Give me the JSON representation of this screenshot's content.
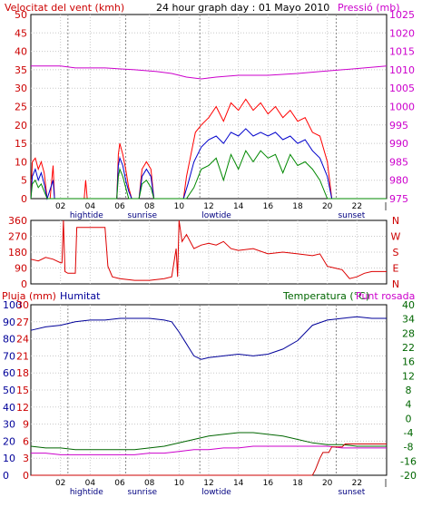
{
  "chart_data": [
    {
      "id": "top",
      "type": "line",
      "title": "24 hour graph day : 01 Mayo 2010",
      "left_axis_label": "Velocitat del vent (kmh)",
      "right_axis_label": "Pressió (mb)",
      "left_range": [
        0,
        50
      ],
      "left_ticks": [
        "0",
        "5",
        "10",
        "15",
        "20",
        "25",
        "30",
        "35",
        "40",
        "45",
        "50"
      ],
      "right_range": [
        975,
        1025
      ],
      "right_ticks": [
        "975",
        "980",
        "985",
        "990",
        "995",
        "1000",
        "1005",
        "1010",
        "1015",
        "1020",
        "1025"
      ],
      "x_ticks": [
        "02",
        "04",
        "06",
        "08",
        "10",
        "12",
        "14",
        "16",
        "18",
        "20",
        "22"
      ],
      "markers": [
        {
          "hour": 2.5,
          "label": "hightide"
        },
        {
          "hour": 6.4,
          "label": "sunrise"
        },
        {
          "hour": 11.4,
          "label": "lowtide"
        },
        {
          "hour": 20.6,
          "label": "sunset"
        }
      ],
      "pressure": {
        "color": "#cc00cc",
        "points": [
          [
            0,
            1011
          ],
          [
            2,
            1011
          ],
          [
            3,
            1010.5
          ],
          [
            5,
            1010.5
          ],
          [
            7,
            1010
          ],
          [
            8.5,
            1009.5
          ],
          [
            9.5,
            1009
          ],
          [
            10.5,
            1008
          ],
          [
            11.5,
            1007.5
          ],
          [
            12.5,
            1008
          ],
          [
            14,
            1008.5
          ],
          [
            16,
            1008.5
          ],
          [
            18,
            1009
          ],
          [
            19.5,
            1009.5
          ],
          [
            21,
            1010
          ],
          [
            22.5,
            1010.5
          ],
          [
            24,
            1011
          ]
        ]
      },
      "wind_max": {
        "color": "#ff0000",
        "points": [
          [
            0,
            0
          ],
          [
            0.1,
            10
          ],
          [
            0.3,
            11
          ],
          [
            0.5,
            8
          ],
          [
            0.7,
            10
          ],
          [
            0.9,
            7
          ],
          [
            1.1,
            0
          ],
          [
            1.3,
            0
          ],
          [
            1.5,
            9
          ],
          [
            1.6,
            0
          ],
          [
            3.6,
            0
          ],
          [
            3.7,
            5
          ],
          [
            3.8,
            0
          ],
          [
            5.8,
            0
          ],
          [
            5.9,
            12
          ],
          [
            6,
            15
          ],
          [
            6.2,
            12
          ],
          [
            6.4,
            8
          ],
          [
            6.6,
            3
          ],
          [
            6.8,
            0
          ],
          [
            7.3,
            0
          ],
          [
            7.5,
            8
          ],
          [
            7.8,
            10
          ],
          [
            8.1,
            8
          ],
          [
            8.3,
            0
          ],
          [
            10.3,
            0
          ],
          [
            10.5,
            6
          ],
          [
            10.8,
            12
          ],
          [
            11.1,
            18
          ],
          [
            11.5,
            20
          ],
          [
            12,
            22
          ],
          [
            12.5,
            25
          ],
          [
            13,
            21
          ],
          [
            13.5,
            26
          ],
          [
            14,
            24
          ],
          [
            14.5,
            27
          ],
          [
            15,
            24
          ],
          [
            15.5,
            26
          ],
          [
            16,
            23
          ],
          [
            16.5,
            25
          ],
          [
            17,
            22
          ],
          [
            17.5,
            24
          ],
          [
            18,
            21
          ],
          [
            18.5,
            22
          ],
          [
            19,
            18
          ],
          [
            19.5,
            17
          ],
          [
            20,
            10
          ],
          [
            20.3,
            0
          ],
          [
            24,
            0
          ]
        ]
      },
      "wind_avg": {
        "color": "#0000cc",
        "points": [
          [
            0,
            0
          ],
          [
            0.1,
            6
          ],
          [
            0.3,
            8
          ],
          [
            0.5,
            5
          ],
          [
            0.7,
            7
          ],
          [
            0.9,
            4
          ],
          [
            1.1,
            0
          ],
          [
            1.5,
            5
          ],
          [
            1.6,
            0
          ],
          [
            5.8,
            0
          ],
          [
            5.9,
            9
          ],
          [
            6,
            11
          ],
          [
            6.2,
            9
          ],
          [
            6.4,
            5
          ],
          [
            6.6,
            2
          ],
          [
            6.8,
            0
          ],
          [
            7.3,
            0
          ],
          [
            7.5,
            6
          ],
          [
            7.8,
            8
          ],
          [
            8.1,
            6
          ],
          [
            8.3,
            0
          ],
          [
            10.3,
            0
          ],
          [
            10.6,
            4
          ],
          [
            11,
            10
          ],
          [
            11.5,
            14
          ],
          [
            12,
            16
          ],
          [
            12.5,
            17
          ],
          [
            13,
            15
          ],
          [
            13.5,
            18
          ],
          [
            14,
            17
          ],
          [
            14.5,
            19
          ],
          [
            15,
            17
          ],
          [
            15.5,
            18
          ],
          [
            16,
            17
          ],
          [
            16.5,
            18
          ],
          [
            17,
            16
          ],
          [
            17.5,
            17
          ],
          [
            18,
            15
          ],
          [
            18.5,
            16
          ],
          [
            19,
            13
          ],
          [
            19.5,
            11
          ],
          [
            20,
            6
          ],
          [
            20.3,
            0
          ],
          [
            24,
            0
          ]
        ]
      },
      "wind_min": {
        "color": "#008800",
        "points": [
          [
            0,
            0
          ],
          [
            0.1,
            4
          ],
          [
            0.3,
            5
          ],
          [
            0.5,
            3
          ],
          [
            0.7,
            4
          ],
          [
            0.9,
            2
          ],
          [
            1.1,
            0
          ],
          [
            5.8,
            0
          ],
          [
            5.9,
            6
          ],
          [
            6,
            8
          ],
          [
            6.2,
            6
          ],
          [
            6.4,
            3
          ],
          [
            6.6,
            0
          ],
          [
            7.3,
            0
          ],
          [
            7.5,
            4
          ],
          [
            7.8,
            5
          ],
          [
            8.1,
            3
          ],
          [
            8.3,
            0
          ],
          [
            10.5,
            0
          ],
          [
            11,
            3
          ],
          [
            11.5,
            8
          ],
          [
            12,
            9
          ],
          [
            12.5,
            11
          ],
          [
            13,
            5
          ],
          [
            13.5,
            12
          ],
          [
            14,
            8
          ],
          [
            14.5,
            13
          ],
          [
            15,
            10
          ],
          [
            15.5,
            13
          ],
          [
            16,
            11
          ],
          [
            16.5,
            12
          ],
          [
            17,
            7
          ],
          [
            17.5,
            12
          ],
          [
            18,
            9
          ],
          [
            18.5,
            10
          ],
          [
            19,
            8
          ],
          [
            19.5,
            5
          ],
          [
            20,
            0
          ],
          [
            24,
            0
          ]
        ]
      }
    },
    {
      "id": "dir",
      "type": "line",
      "left_range": [
        0,
        360
      ],
      "left_ticks": [
        "0",
        "90",
        "180",
        "270",
        "360"
      ],
      "right_ticks": [
        "N",
        "E",
        "S",
        "W",
        "N"
      ],
      "direction": {
        "color": "#dd0000",
        "points": [
          [
            0,
            140
          ],
          [
            0.5,
            130
          ],
          [
            1,
            150
          ],
          [
            1.5,
            140
          ],
          [
            2,
            120
          ],
          [
            2.1,
            120
          ],
          [
            2.2,
            360
          ],
          [
            2.3,
            70
          ],
          [
            2.5,
            60
          ],
          [
            3,
            60
          ],
          [
            3.1,
            320
          ],
          [
            5,
            320
          ],
          [
            5.2,
            100
          ],
          [
            5.5,
            40
          ],
          [
            6,
            30
          ],
          [
            7,
            20
          ],
          [
            8,
            20
          ],
          [
            9,
            30
          ],
          [
            9.5,
            40
          ],
          [
            9.8,
            200
          ],
          [
            9.9,
            40
          ],
          [
            10,
            360
          ],
          [
            10.2,
            240
          ],
          [
            10.5,
            280
          ],
          [
            11,
            200
          ],
          [
            11.5,
            220
          ],
          [
            12,
            230
          ],
          [
            12.5,
            220
          ],
          [
            13,
            240
          ],
          [
            13.5,
            200
          ],
          [
            14,
            190
          ],
          [
            15,
            200
          ],
          [
            16,
            170
          ],
          [
            17,
            180
          ],
          [
            18,
            170
          ],
          [
            19,
            160
          ],
          [
            19.5,
            170
          ],
          [
            20,
            100
          ],
          [
            20.5,
            90
          ],
          [
            21,
            80
          ],
          [
            21.5,
            30
          ],
          [
            22,
            40
          ],
          [
            22.5,
            60
          ],
          [
            23,
            70
          ],
          [
            24,
            70
          ]
        ]
      }
    },
    {
      "id": "bottom",
      "type": "line",
      "rain_label": "Pluja (mm)",
      "humidity_label": "Humitat",
      "temp_label": "Temperatura (°C)",
      "dew_label": "Punt rosada",
      "hum_ticks": [
        "0",
        "10",
        "20",
        "30",
        "40",
        "50",
        "60",
        "70",
        "80",
        "90",
        "100"
      ],
      "rain_ticks": [
        "0",
        "3",
        "6",
        "9",
        "12",
        "15",
        "18",
        "21",
        "24",
        "27",
        "30"
      ],
      "temp_ticks": [
        "-20",
        "-16",
        "-8",
        "-4",
        "0",
        "4",
        "8",
        "12",
        "16",
        "24",
        "28",
        "34",
        "40"
      ],
      "temp_tick_fracs": [
        0,
        0.1,
        0.2,
        0.3,
        0.4,
        0.5,
        0.6,
        0.7,
        0.8,
        0.9,
        1.0,
        0.9,
        1.0
      ],
      "x_ticks": [
        "02",
        "04",
        "06",
        "08",
        "10",
        "12",
        "14",
        "16",
        "18",
        "20",
        "22"
      ],
      "markers": [
        {
          "hour": 2.5,
          "label": "hightide"
        },
        {
          "hour": 6.4,
          "label": "sunrise"
        },
        {
          "hour": 11.4,
          "label": "lowtide"
        },
        {
          "hour": 20.6,
          "label": "sunset"
        }
      ],
      "humidity": {
        "color": "#000099",
        "points": [
          [
            0,
            85
          ],
          [
            1,
            87
          ],
          [
            2,
            88
          ],
          [
            3,
            90
          ],
          [
            4,
            91
          ],
          [
            5,
            91
          ],
          [
            6,
            92
          ],
          [
            7,
            92
          ],
          [
            8,
            92
          ],
          [
            9,
            91
          ],
          [
            9.5,
            90
          ],
          [
            10,
            84
          ],
          [
            10.5,
            77
          ],
          [
            11,
            70
          ],
          [
            11.5,
            68
          ],
          [
            12,
            69
          ],
          [
            13,
            70
          ],
          [
            14,
            71
          ],
          [
            15,
            70
          ],
          [
            16,
            71
          ],
          [
            17,
            74
          ],
          [
            18,
            79
          ],
          [
            19,
            88
          ],
          [
            20,
            91
          ],
          [
            21,
            92
          ],
          [
            22,
            93
          ],
          [
            23,
            92
          ],
          [
            24,
            92
          ]
        ]
      },
      "temperature": {
        "color": "#006600",
        "points": [
          [
            0,
            17
          ],
          [
            1,
            16
          ],
          [
            2,
            16
          ],
          [
            3,
            15
          ],
          [
            4,
            15
          ],
          [
            5,
            15
          ],
          [
            6,
            15
          ],
          [
            7,
            15
          ],
          [
            8,
            16
          ],
          [
            9,
            17
          ],
          [
            10,
            19
          ],
          [
            11,
            21
          ],
          [
            12,
            23
          ],
          [
            13,
            24
          ],
          [
            14,
            25
          ],
          [
            15,
            25
          ],
          [
            16,
            24
          ],
          [
            17,
            23
          ],
          [
            18,
            21
          ],
          [
            19,
            19
          ],
          [
            20,
            18
          ],
          [
            21,
            18
          ],
          [
            22,
            17
          ],
          [
            23,
            17
          ],
          [
            24,
            17
          ]
        ]
      },
      "dew_point": {
        "color": "#cc00cc",
        "points": [
          [
            0,
            13
          ],
          [
            1,
            13
          ],
          [
            2,
            12
          ],
          [
            3,
            12
          ],
          [
            4,
            12
          ],
          [
            5,
            12
          ],
          [
            6,
            12
          ],
          [
            7,
            12
          ],
          [
            8,
            13
          ],
          [
            9,
            13
          ],
          [
            10,
            14
          ],
          [
            11,
            15
          ],
          [
            12,
            15
          ],
          [
            13,
            16
          ],
          [
            14,
            16
          ],
          [
            15,
            17
          ],
          [
            16,
            17
          ],
          [
            17,
            17
          ],
          [
            18,
            17
          ],
          [
            19,
            17
          ],
          [
            20,
            17
          ],
          [
            21,
            16
          ],
          [
            22,
            16
          ],
          [
            23,
            16
          ],
          [
            24,
            16
          ]
        ]
      },
      "rain": {
        "color": "#cc0000",
        "points": [
          [
            0,
            0
          ],
          [
            19,
            0
          ],
          [
            19.2,
            1
          ],
          [
            19.5,
            3
          ],
          [
            19.7,
            4
          ],
          [
            20.1,
            4
          ],
          [
            20.3,
            5
          ],
          [
            21,
            5
          ],
          [
            21.2,
            5.5
          ],
          [
            24,
            5.5
          ]
        ]
      }
    }
  ]
}
